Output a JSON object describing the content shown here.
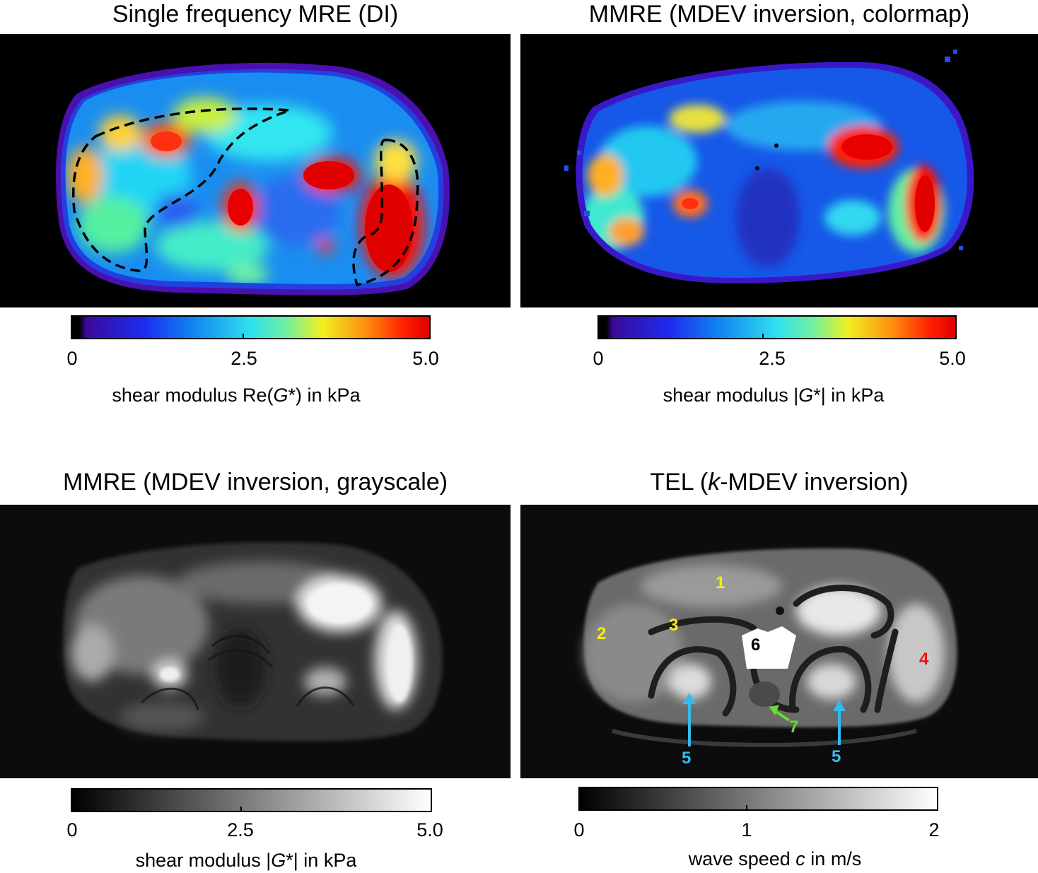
{
  "panels": [
    {
      "title": "Single frequency MRE (DI)",
      "colorbar": {
        "ticks": [
          "0",
          "2.5",
          "5.0"
        ],
        "label_pre": "shear modulus Re(",
        "label_var": "G",
        "label_post": "*) in kPa",
        "colormap": "jet"
      }
    },
    {
      "title": "MMRE (MDEV inversion, colormap)",
      "colorbar": {
        "ticks": [
          "0",
          "2.5",
          "5.0"
        ],
        "label_pre": "shear modulus |",
        "label_var": "G",
        "label_post": "*| in kPa",
        "colormap": "jet"
      }
    },
    {
      "title": "MMRE (MDEV inversion, grayscale)",
      "colorbar": {
        "ticks": [
          "0",
          "2.5",
          "5.0"
        ],
        "label_pre": "shear modulus |",
        "label_var": "G",
        "label_post": "*| in kPa",
        "colormap": "gray"
      }
    },
    {
      "title_pre": "TEL (",
      "title_var": "k",
      "title_post": "-MDEV inversion)",
      "colorbar": {
        "ticks": [
          "0",
          "1",
          "2"
        ],
        "label_pre": "wave speed ",
        "label_var": "c",
        "label_post": " in m/s",
        "colormap": "gray"
      }
    }
  ],
  "annotations": [
    {
      "label": "1",
      "color": "#ffee00"
    },
    {
      "label": "2",
      "color": "#ffee00"
    },
    {
      "label": "3",
      "color": "#ffee00"
    },
    {
      "label": "4",
      "color": "#ee1111"
    },
    {
      "label": "5",
      "color": "#33bbee"
    },
    {
      "label": "5",
      "color": "#33bbee"
    },
    {
      "label": "6",
      "color": "#000000"
    },
    {
      "label": "7",
      "color": "#66dd33"
    }
  ]
}
